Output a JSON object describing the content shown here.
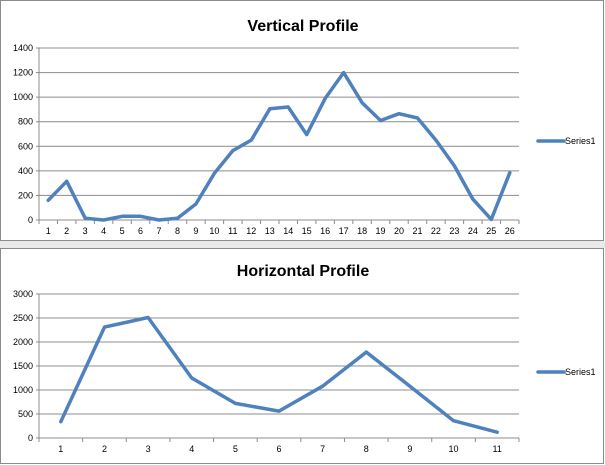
{
  "chart_data": [
    {
      "type": "line",
      "title": "Vertical Profile",
      "xlabel": "",
      "ylabel": "",
      "categories": [
        "1",
        "2",
        "3",
        "4",
        "5",
        "6",
        "7",
        "8",
        "9",
        "10",
        "11",
        "12",
        "13",
        "14",
        "15",
        "16",
        "17",
        "18",
        "19",
        "20",
        "21",
        "22",
        "23",
        "24",
        "25",
        "26"
      ],
      "series": [
        {
          "name": "Series1",
          "values": [
            160,
            315,
            15,
            0,
            30,
            30,
            0,
            15,
            130,
            380,
            565,
            650,
            905,
            920,
            695,
            990,
            1200,
            955,
            810,
            865,
            830,
            650,
            440,
            170,
            5,
            385
          ]
        }
      ],
      "ylim": [
        0,
        1400
      ],
      "yticks": [
        "0",
        "200",
        "400",
        "600",
        "800",
        "1000",
        "1200",
        "1400"
      ],
      "grid": true,
      "legend": "right",
      "color": "#4f81bd"
    },
    {
      "type": "line",
      "title": "Horizontal Profile",
      "xlabel": "",
      "ylabel": "",
      "categories": [
        "1",
        "2",
        "3",
        "4",
        "5",
        "6",
        "7",
        "8",
        "9",
        "10",
        "11"
      ],
      "series": [
        {
          "name": "Series1",
          "values": [
            340,
            2310,
            2510,
            1250,
            720,
            560,
            1080,
            1790,
            1080,
            360,
            120
          ]
        }
      ],
      "ylim": [
        0,
        3000
      ],
      "yticks": [
        "0",
        "500",
        "1000",
        "1500",
        "2000",
        "2500",
        "3000"
      ],
      "grid": true,
      "legend": "right",
      "color": "#4f81bd"
    }
  ]
}
